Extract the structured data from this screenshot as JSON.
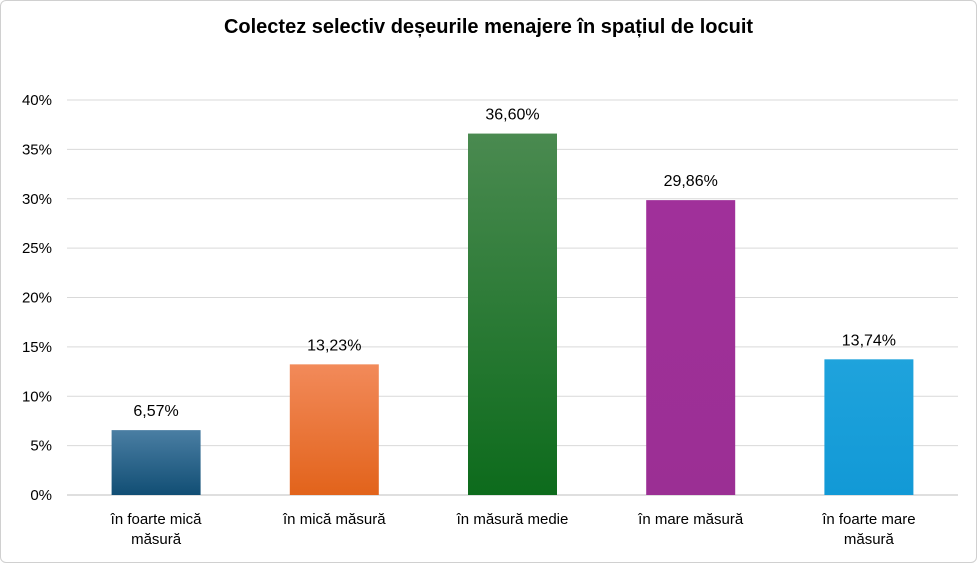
{
  "chart_data": {
    "type": "bar",
    "title": "Colectez selectiv deșeurile menajere în spațiul de locuit",
    "categories": [
      [
        "în foarte mică",
        "măsură"
      ],
      [
        "în mică măsură"
      ],
      [
        "în măsură medie"
      ],
      [
        "în mare măsură"
      ],
      [
        "în foarte mare",
        "măsură"
      ]
    ],
    "values": [
      6.57,
      13.23,
      36.6,
      29.86,
      13.74
    ],
    "data_labels": [
      "6,57%",
      "13,23%",
      "36,60%",
      "29,86%",
      "13,74%"
    ],
    "ylim": [
      0,
      40
    ],
    "yticks": [
      0,
      5,
      10,
      15,
      20,
      25,
      30,
      35,
      40
    ],
    "ytick_labels": [
      "0%",
      "5%",
      "10%",
      "15%",
      "20%",
      "25%",
      "30%",
      "35%",
      "40%"
    ],
    "grid": true,
    "colors": [
      [
        "#4a7ea3",
        "#114e74"
      ],
      [
        "#f28a5a",
        "#e2631b"
      ],
      [
        "#4a8a50",
        "#0d6b1c"
      ],
      [
        "#a0309a",
        "#9b2f94"
      ],
      [
        "#1fa3dc",
        "#1299d6"
      ]
    ]
  }
}
